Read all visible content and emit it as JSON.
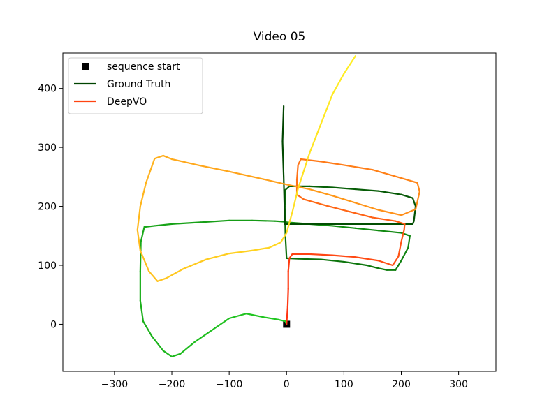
{
  "chart_data": {
    "type": "line",
    "title": "Video 05",
    "xlabel": "",
    "ylabel": "",
    "xlim": [
      -390,
      365
    ],
    "ylim": [
      -80,
      460
    ],
    "xticks": [
      -300,
      -200,
      -100,
      0,
      100,
      200,
      300
    ],
    "xtick_labels": [
      "−300",
      "−200",
      "−100",
      "0",
      "100",
      "200",
      "300"
    ],
    "yticks": [
      0,
      100,
      200,
      300,
      400
    ],
    "ytick_labels": [
      "0",
      "100",
      "200",
      "300",
      "400"
    ],
    "grid": false,
    "legend": {
      "location": "top-left",
      "entries": [
        {
          "label": "sequence start",
          "marker": "square",
          "color": "#000000"
        },
        {
          "label": "Ground Truth",
          "color": "#004400"
        },
        {
          "label": "DeepVO",
          "color": "#ff4411"
        }
      ]
    },
    "series": [
      {
        "name": "sequence start",
        "kind": "marker",
        "color": "#000000",
        "points": [
          [
            0,
            0
          ]
        ]
      },
      {
        "name": "Ground Truth",
        "kind": "gradient-line",
        "colors": [
          "#22cc22",
          "#004400"
        ],
        "points": [
          [
            0,
            0
          ],
          [
            -2,
            5
          ],
          [
            -15,
            8
          ],
          [
            -40,
            12
          ],
          [
            -70,
            18
          ],
          [
            -100,
            10
          ],
          [
            -130,
            -10
          ],
          [
            -160,
            -30
          ],
          [
            -185,
            -50
          ],
          [
            -200,
            -55
          ],
          [
            -215,
            -45
          ],
          [
            -235,
            -20
          ],
          [
            -250,
            5
          ],
          [
            -255,
            40
          ],
          [
            -255,
            90
          ],
          [
            -254,
            140
          ],
          [
            -248,
            165
          ],
          [
            -230,
            167
          ],
          [
            -200,
            170
          ],
          [
            -150,
            173
          ],
          [
            -100,
            176
          ],
          [
            -60,
            176
          ],
          [
            -20,
            175
          ],
          [
            -5,
            174
          ],
          [
            0,
            173
          ],
          [
            40,
            170
          ],
          [
            80,
            167
          ],
          [
            120,
            163
          ],
          [
            160,
            159
          ],
          [
            200,
            155
          ],
          [
            215,
            150
          ],
          [
            212,
            130
          ],
          [
            200,
            108
          ],
          [
            190,
            92
          ],
          [
            175,
            92
          ],
          [
            160,
            95
          ],
          [
            140,
            100
          ],
          [
            100,
            106
          ],
          [
            60,
            110
          ],
          [
            20,
            111
          ],
          [
            0,
            112
          ],
          [
            -2,
            150
          ],
          [
            -3,
            200
          ],
          [
            -2,
            228
          ],
          [
            5,
            234
          ],
          [
            40,
            234
          ],
          [
            80,
            232
          ],
          [
            120,
            229
          ],
          [
            160,
            226
          ],
          [
            200,
            220
          ],
          [
            220,
            214
          ],
          [
            225,
            200
          ],
          [
            222,
            175
          ],
          [
            220,
            170
          ],
          [
            -3,
            170
          ],
          [
            -5,
            250
          ],
          [
            -7,
            310
          ],
          [
            -6,
            340
          ],
          [
            -5,
            370
          ]
        ]
      },
      {
        "name": "DeepVO",
        "kind": "gradient-line",
        "colors": [
          "#ff3311",
          "#ffee22"
        ],
        "points": [
          [
            0,
            0
          ],
          [
            2,
            30
          ],
          [
            3,
            60
          ],
          [
            3,
            90
          ],
          [
            5,
            112
          ],
          [
            10,
            119
          ],
          [
            40,
            119
          ],
          [
            80,
            117
          ],
          [
            120,
            114
          ],
          [
            160,
            108
          ],
          [
            185,
            100
          ],
          [
            195,
            115
          ],
          [
            200,
            140
          ],
          [
            205,
            160
          ],
          [
            206,
            170
          ],
          [
            190,
            175
          ],
          [
            150,
            181
          ],
          [
            110,
            191
          ],
          [
            70,
            201
          ],
          [
            30,
            212
          ],
          [
            18,
            220
          ],
          [
            18,
            245
          ],
          [
            20,
            270
          ],
          [
            25,
            280
          ],
          [
            60,
            276
          ],
          [
            100,
            270
          ],
          [
            150,
            262
          ],
          [
            200,
            248
          ],
          [
            228,
            240
          ],
          [
            232,
            225
          ],
          [
            225,
            195
          ],
          [
            200,
            185
          ],
          [
            160,
            194
          ],
          [
            120,
            206
          ],
          [
            80,
            218
          ],
          [
            40,
            229
          ],
          [
            0,
            237
          ],
          [
            -40,
            246
          ],
          [
            -100,
            259
          ],
          [
            -150,
            269
          ],
          [
            -200,
            280
          ],
          [
            -215,
            286
          ],
          [
            -230,
            281
          ],
          [
            -245,
            240
          ],
          [
            -255,
            200
          ],
          [
            -260,
            160
          ],
          [
            -255,
            125
          ],
          [
            -240,
            90
          ],
          [
            -225,
            73
          ],
          [
            -210,
            78
          ],
          [
            -180,
            94
          ],
          [
            -140,
            110
          ],
          [
            -100,
            120
          ],
          [
            -60,
            125
          ],
          [
            -30,
            130
          ],
          [
            -10,
            139
          ],
          [
            0,
            155
          ],
          [
            10,
            190
          ],
          [
            20,
            230
          ],
          [
            40,
            290
          ],
          [
            60,
            340
          ],
          [
            80,
            390
          ],
          [
            100,
            425
          ],
          [
            120,
            455
          ]
        ]
      }
    ]
  }
}
